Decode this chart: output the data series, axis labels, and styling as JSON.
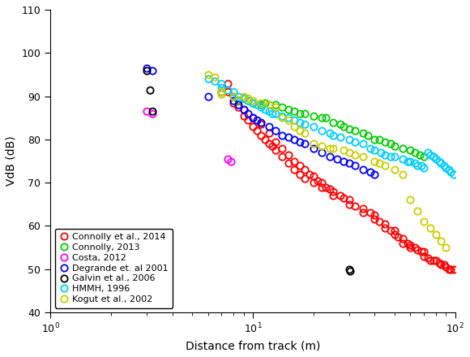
{
  "title": "",
  "xlabel": "Distance from track (m)",
  "ylabel": "VdB (dB)",
  "xlim": [
    1,
    100
  ],
  "ylim": [
    40,
    110
  ],
  "yticks": [
    40,
    50,
    60,
    70,
    80,
    90,
    100,
    110
  ],
  "series": [
    {
      "label": "Connolly et al., 2014",
      "color": "#FF0000",
      "x": [
        7.5,
        7.5,
        8.0,
        8.0,
        8.5,
        9.0,
        9.0,
        9.5,
        10.0,
        10.0,
        10.5,
        11.0,
        11.0,
        11.5,
        12.0,
        12.0,
        12.5,
        13.0,
        13.0,
        14.0,
        14.0,
        15.0,
        15.0,
        16.0,
        16.0,
        17.0,
        17.0,
        18.0,
        18.0,
        19.0,
        20.0,
        20.0,
        21.0,
        22.0,
        22.0,
        23.0,
        24.0,
        25.0,
        25.0,
        27.0,
        28.0,
        30.0,
        30.0,
        32.0,
        35.0,
        35.0,
        38.0,
        40.0,
        40.0,
        42.0,
        45.0,
        45.0,
        48.0,
        50.0,
        50.0,
        52.0,
        55.0,
        55.0,
        58.0,
        60.0,
        60.0,
        63.0,
        65.0,
        68.0,
        70.0,
        70.0,
        73.0,
        75.0,
        78.0,
        80.0,
        83.0,
        85.0,
        88.0,
        90.0,
        93.0,
        95.0,
        98.0
      ],
      "y": [
        93.0,
        91.0,
        90.0,
        88.5,
        87.5,
        87.0,
        85.5,
        84.5,
        85.0,
        83.0,
        82.0,
        83.5,
        81.0,
        80.0,
        81.5,
        79.0,
        78.5,
        79.5,
        77.5,
        78.0,
        76.0,
        76.5,
        74.5,
        75.0,
        73.0,
        74.0,
        72.0,
        73.0,
        71.0,
        72.0,
        71.5,
        70.0,
        70.5,
        70.0,
        69.0,
        69.0,
        68.5,
        68.0,
        67.0,
        67.0,
        66.5,
        66.0,
        65.0,
        64.5,
        64.0,
        63.0,
        63.0,
        62.5,
        61.5,
        61.0,
        60.5,
        59.5,
        59.0,
        59.0,
        58.0,
        57.5,
        57.0,
        56.0,
        56.0,
        55.5,
        55.0,
        55.0,
        54.5,
        54.0,
        54.0,
        53.0,
        52.5,
        52.0,
        52.0,
        52.0,
        51.5,
        51.0,
        51.0,
        50.5,
        50.0,
        50.0,
        50.0
      ]
    },
    {
      "label": "Connolly, 2013",
      "color": "#00CC00",
      "x": [
        8.5,
        9.0,
        9.5,
        10.0,
        11.0,
        11.5,
        12.0,
        13.0,
        14.0,
        15.0,
        16.0,
        17.0,
        18.0,
        20.0,
        22.0,
        23.0,
        25.0,
        27.0,
        28.0,
        30.0,
        32.0,
        35.0,
        37.0,
        40.0,
        42.0,
        45.0,
        48.0,
        50.0,
        55.0,
        60.0,
        63.0,
        67.0,
        70.0
      ],
      "y": [
        89.0,
        89.5,
        89.0,
        88.5,
        88.0,
        88.5,
        88.0,
        88.0,
        87.5,
        87.0,
        86.5,
        86.0,
        86.0,
        85.5,
        85.0,
        85.0,
        84.0,
        83.5,
        83.0,
        82.5,
        82.0,
        81.5,
        81.0,
        80.0,
        80.0,
        79.5,
        79.0,
        78.5,
        78.0,
        77.5,
        77.0,
        76.5,
        76.0
      ]
    },
    {
      "label": "Costa, 2012",
      "color": "#FF00FF",
      "x": [
        3.0,
        3.2,
        7.5,
        7.8
      ],
      "y": [
        86.5,
        86.0,
        75.5,
        75.0
      ]
    },
    {
      "label": "Degrande et. al 2001",
      "color": "#0000FF",
      "x": [
        3.0,
        3.2,
        6.0,
        7.0,
        8.0,
        8.5,
        9.0,
        9.5,
        10.0,
        10.5,
        11.0,
        12.0,
        13.0,
        14.0,
        15.0,
        16.0,
        17.0,
        18.0,
        20.0,
        22.0,
        24.0,
        26.0,
        28.0,
        30.0,
        32.0,
        35.0,
        38.0,
        40.0
      ],
      "y": [
        96.5,
        96.0,
        90.0,
        91.0,
        89.0,
        88.0,
        87.0,
        86.0,
        85.0,
        84.5,
        84.0,
        83.0,
        82.0,
        81.0,
        80.5,
        80.0,
        79.5,
        79.0,
        78.0,
        77.0,
        76.0,
        75.5,
        75.0,
        74.5,
        74.0,
        73.0,
        72.5,
        72.0
      ]
    },
    {
      "label": "Galvin et al., 2006",
      "color": "#000000",
      "x": [
        3.0,
        3.1,
        3.2,
        30.0,
        30.2
      ],
      "y": [
        96.0,
        91.5,
        86.5,
        50.0,
        49.5
      ]
    },
    {
      "label": "HMMH, 1996",
      "color": "#00CCFF",
      "x": [
        6.0,
        6.5,
        7.0,
        7.0,
        7.5,
        8.0,
        8.0,
        8.5,
        9.0,
        9.5,
        10.0,
        10.5,
        11.0,
        11.5,
        12.0,
        12.5,
        13.0,
        14.0,
        15.0,
        16.0,
        17.0,
        18.0,
        20.0,
        22.0,
        24.0,
        25.0,
        27.0,
        30.0,
        32.0,
        35.0,
        38.0,
        40.0,
        43.0,
        45.0,
        48.0,
        50.0,
        55.0,
        58.0,
        60.0,
        63.0,
        65.0,
        68.0,
        70.0,
        73.0,
        75.0,
        78.0,
        80.0,
        83.0,
        85.0,
        88.0,
        90.0,
        93.0,
        95.0,
        98.0
      ],
      "y": [
        94.0,
        93.5,
        93.0,
        92.0,
        91.5,
        91.0,
        90.0,
        90.0,
        89.5,
        89.0,
        88.5,
        88.0,
        87.5,
        87.0,
        86.5,
        86.0,
        86.0,
        85.5,
        85.0,
        84.5,
        84.0,
        83.5,
        83.0,
        82.0,
        81.5,
        81.0,
        80.5,
        80.0,
        79.5,
        79.0,
        78.0,
        77.5,
        77.0,
        76.5,
        76.0,
        76.0,
        75.5,
        75.0,
        75.0,
        74.5,
        74.0,
        74.0,
        73.5,
        77.0,
        76.5,
        76.0,
        75.5,
        75.0,
        74.5,
        74.0,
        73.5,
        73.0,
        72.5,
        72.0
      ]
    },
    {
      "label": "Kogut et al., 2002",
      "color": "#CCCC00",
      "x": [
        6.0,
        6.5,
        7.0,
        7.0,
        8.0,
        9.0,
        9.5,
        10.0,
        11.0,
        12.0,
        13.0,
        14.0,
        15.0,
        16.0,
        17.0,
        18.0,
        20.0,
        22.0,
        24.0,
        25.0,
        28.0,
        30.0,
        32.0,
        35.0,
        40.0,
        42.0,
        45.0,
        50.0,
        55.0,
        60.0,
        65.0,
        70.0,
        75.0,
        80.0,
        85.0,
        90.0
      ],
      "y": [
        95.0,
        94.5,
        91.0,
        90.5,
        90.0,
        90.0,
        89.5,
        89.0,
        88.5,
        88.0,
        87.5,
        85.0,
        84.5,
        83.0,
        82.0,
        81.5,
        79.0,
        78.5,
        78.0,
        78.0,
        77.5,
        77.0,
        76.5,
        76.0,
        75.0,
        74.5,
        74.0,
        73.0,
        72.0,
        66.0,
        63.5,
        61.0,
        59.5,
        58.0,
        56.5,
        55.0
      ]
    }
  ],
  "marker_size": 6,
  "linewidth": 1.3,
  "background_color": "#FFFFFF",
  "figsize": [
    5.8,
    4.4
  ],
  "dpi": 100
}
